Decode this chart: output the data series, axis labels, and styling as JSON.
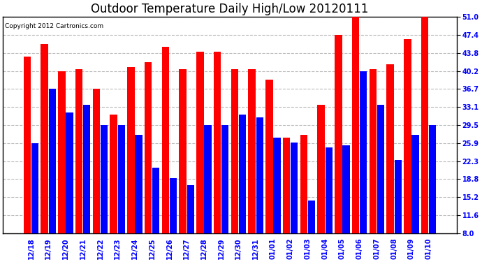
{
  "title": "Outdoor Temperature Daily High/Low 20120111",
  "copyright": "Copyright 2012 Cartronics.com",
  "labels": [
    "12/18",
    "12/19",
    "12/20",
    "12/21",
    "12/22",
    "12/23",
    "12/24",
    "12/25",
    "12/26",
    "12/27",
    "12/28",
    "12/29",
    "12/30",
    "12/31",
    "01/01",
    "01/02",
    "01/03",
    "01/04",
    "01/05",
    "01/06",
    "01/07",
    "01/08",
    "01/09",
    "01/10"
  ],
  "highs": [
    43.0,
    45.5,
    40.2,
    40.5,
    36.7,
    31.5,
    41.0,
    42.0,
    45.0,
    40.5,
    44.0,
    44.0,
    40.5,
    40.5,
    38.5,
    27.0,
    27.5,
    33.5,
    47.4,
    51.0,
    40.5,
    41.5,
    46.5,
    51.0
  ],
  "lows": [
    25.9,
    36.7,
    32.0,
    33.5,
    29.5,
    29.5,
    27.5,
    21.0,
    19.0,
    17.5,
    29.5,
    29.5,
    31.5,
    31.0,
    27.0,
    26.0,
    14.5,
    25.0,
    25.5,
    40.2,
    33.5,
    22.5,
    27.5,
    29.5
  ],
  "high_color": "#ff0000",
  "low_color": "#0000ff",
  "bg_color": "#ffffff",
  "plot_bg": "#ffffff",
  "grid_color": "#bbbbbb",
  "yticks": [
    8.0,
    11.6,
    15.2,
    18.8,
    22.3,
    25.9,
    29.5,
    33.1,
    36.7,
    40.2,
    43.8,
    47.4,
    51.0
  ],
  "ylim": [
    8.0,
    51.0
  ],
  "ybase": 8.0,
  "title_fontsize": 12,
  "tick_fontsize": 7,
  "copyright_fontsize": 6.5,
  "bar_width": 0.42,
  "bar_gap": 0.03
}
